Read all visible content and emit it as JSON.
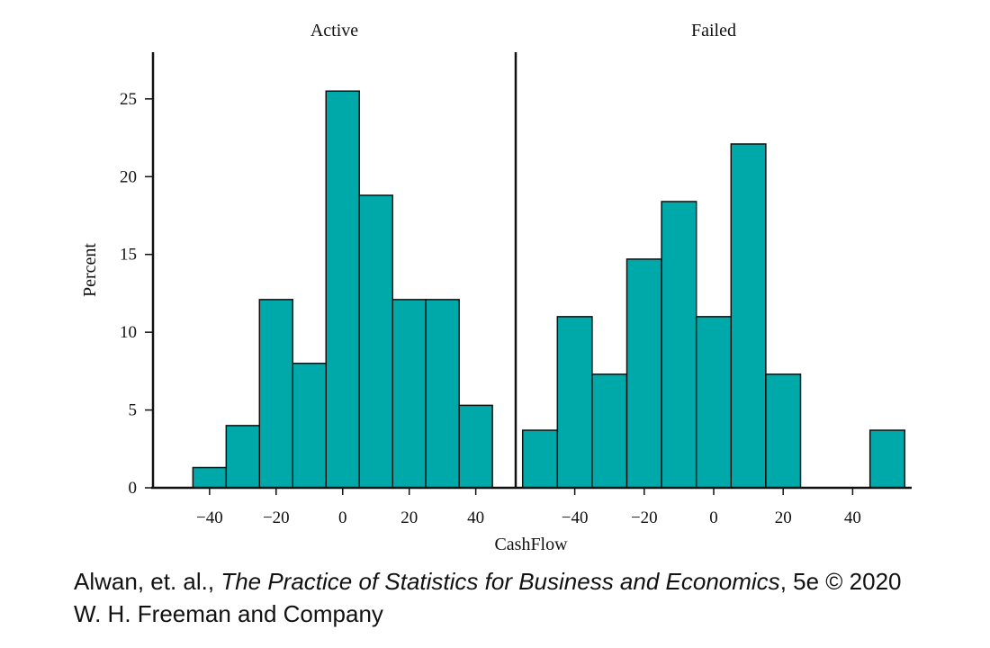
{
  "chart_data": {
    "type": "bar",
    "subtype": "histogram-panels",
    "xlabel": "CashFlow",
    "ylabel": "Percent",
    "ylim": [
      0,
      28
    ],
    "yticks": [
      0,
      5,
      10,
      15,
      20,
      25
    ],
    "bar_color": "#00a9a9",
    "bar_stroke": "#111111",
    "panels": [
      {
        "title": "Active",
        "xlim": [
          -57,
          52
        ],
        "xticks": [
          -40,
          -20,
          0,
          20,
          40
        ],
        "xtick_labels": [
          "−40",
          "−20",
          "0",
          "20",
          "40"
        ],
        "bin_width": 10,
        "bin_starts": [
          -45,
          -35,
          -25,
          -15,
          -5,
          5,
          15,
          25,
          35
        ],
        "values": [
          1.3,
          4.0,
          12.1,
          8.0,
          25.5,
          18.8,
          12.1,
          12.1,
          5.3
        ]
      },
      {
        "title": "Failed",
        "xlim": [
          -57,
          57
        ],
        "xticks": [
          -40,
          -20,
          0,
          20,
          40
        ],
        "xtick_labels": [
          "−40",
          "−20",
          "0",
          "20",
          "40"
        ],
        "bin_width": 10,
        "bin_starts": [
          -55,
          -45,
          -35,
          -25,
          -15,
          -5,
          5,
          15,
          25,
          35,
          45
        ],
        "values": [
          3.7,
          11.0,
          7.3,
          14.7,
          18.4,
          11.0,
          22.1,
          7.3,
          0,
          0,
          3.7
        ]
      }
    ]
  },
  "credit": {
    "authors": "Alwan, et. al.,",
    "book_title": "The Practice of Statistics for Business and Economics",
    "edition": ", 5e © 2020",
    "publisher": "W. H. Freeman and Company"
  }
}
